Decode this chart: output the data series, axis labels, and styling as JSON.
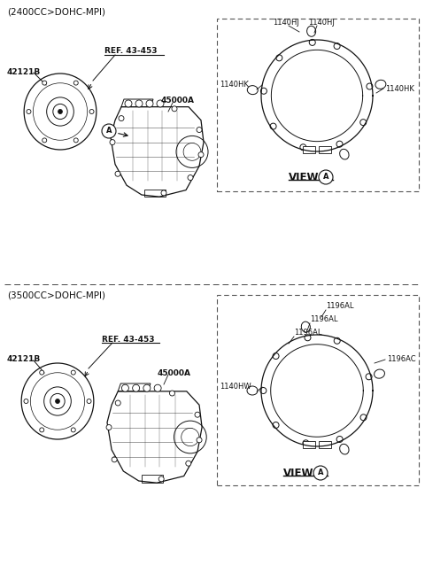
{
  "bg_color": "#ffffff",
  "text_color": "#111111",
  "line_color": "#111111",
  "section1_label": "(2400CC>DOHC-MPI)",
  "section2_label": "(3500CC>DOHC-MPI)",
  "font_size_section": 7.5,
  "font_size_part": 6.5,
  "font_size_label": 6.0,
  "font_size_view": 8.5,
  "section1": {
    "part1": "42121B",
    "part2": "REF. 43-453",
    "part3": "45000A",
    "callout": "A",
    "view_text": "VIEW",
    "view_callout": "A",
    "label_TL1": "1140HJ",
    "label_TL2": "1140HJ",
    "label_ML": "1140HK",
    "label_MR": "1140HK"
  },
  "section2": {
    "part1": "42121B",
    "part2": "REF. 43-453",
    "part3": "45000A",
    "callout": "A",
    "view_text": "VIEW",
    "view_callout": "A",
    "label_TR1": "1196AL",
    "label_TR2": "1196AL",
    "label_TR3": "1196AL",
    "label_MR": "1196AC",
    "label_ML": "1140HW"
  }
}
